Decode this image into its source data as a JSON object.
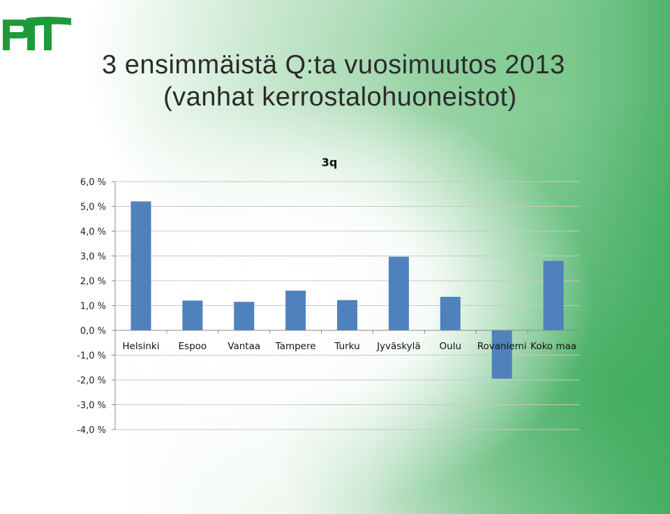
{
  "slide": {
    "title_line1": "3 ensimmäistä Q:ta vuosimuutos 2013",
    "title_line2": "(vanhat kerrostalohuoneistot)",
    "logo_text": "PTT",
    "brand_color": "#1f9a3a"
  },
  "chart_data": {
    "type": "bar",
    "title": "3q",
    "categories": [
      "Helsinki",
      "Espoo",
      "Vantaa",
      "Tampere",
      "Turku",
      "Jyväskylä",
      "Oulu",
      "Rovaniemi",
      "Koko maa"
    ],
    "values": [
      5.2,
      1.2,
      1.15,
      1.6,
      1.22,
      2.97,
      1.35,
      -1.95,
      2.8
    ],
    "ylim": [
      -4.0,
      6.0
    ],
    "yticks": [
      "6,0 %",
      "5,0 %",
      "4,0 %",
      "3,0 %",
      "2,0 %",
      "1,0 %",
      "0,0 %",
      "-1,0 %",
      "-2,0 %",
      "-3,0 %",
      "-4,0 %"
    ],
    "ytick_values": [
      6,
      5,
      4,
      3,
      2,
      1,
      0,
      -1,
      -2,
      -3,
      -4
    ],
    "grid": true,
    "bar_color": "#4f81bd",
    "xlabel": "",
    "ylabel": ""
  }
}
